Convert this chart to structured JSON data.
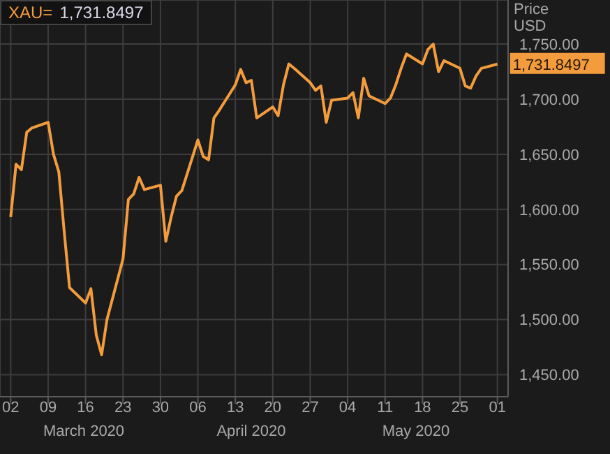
{
  "chart_data": {
    "type": "line",
    "title": "XAU=",
    "ylabel": "Price USD",
    "annotations": [
      "1,731.8497",
      "March 2020",
      "April 2020",
      "May 2020"
    ],
    "x": [
      "2020-03-02",
      "2020-03-03",
      "2020-03-04",
      "2020-03-05",
      "2020-03-06",
      "2020-03-09",
      "2020-03-10",
      "2020-03-11",
      "2020-03-12",
      "2020-03-13",
      "2020-03-16",
      "2020-03-17",
      "2020-03-18",
      "2020-03-19",
      "2020-03-20",
      "2020-03-23",
      "2020-03-24",
      "2020-03-25",
      "2020-03-26",
      "2020-03-27",
      "2020-03-30",
      "2020-03-31",
      "2020-04-01",
      "2020-04-02",
      "2020-04-03",
      "2020-04-06",
      "2020-04-07",
      "2020-04-08",
      "2020-04-09",
      "2020-04-10",
      "2020-04-13",
      "2020-04-14",
      "2020-04-15",
      "2020-04-16",
      "2020-04-17",
      "2020-04-20",
      "2020-04-21",
      "2020-04-22",
      "2020-04-23",
      "2020-04-24",
      "2020-04-27",
      "2020-04-28",
      "2020-04-29",
      "2020-04-30",
      "2020-05-01",
      "2020-05-04",
      "2020-05-05",
      "2020-05-06",
      "2020-05-07",
      "2020-05-08",
      "2020-05-11",
      "2020-05-12",
      "2020-05-13",
      "2020-05-14",
      "2020-05-15",
      "2020-05-18",
      "2020-05-19",
      "2020-05-20",
      "2020-05-21",
      "2020-05-22",
      "2020-05-25",
      "2020-05-26",
      "2020-05-27",
      "2020-05-28",
      "2020-05-29",
      "2020-06-01"
    ],
    "series": [
      {
        "color": "#f39c3d",
        "values": [
          1593,
          1641,
          1636,
          1670,
          1674,
          1679,
          1650,
          1634,
          1580,
          1529,
          1515,
          1528,
          1486,
          1468,
          1500,
          1555,
          1609,
          1614,
          1629,
          1618,
          1622,
          1571,
          1593,
          1612,
          1617,
          1663,
          1648,
          1645,
          1683,
          1690,
          1713,
          1727,
          1715,
          1717,
          1683,
          1693,
          1685,
          1713,
          1732,
          1728,
          1715,
          1708,
          1712,
          1679,
          1699,
          1701,
          1706,
          1683,
          1719,
          1703,
          1696,
          1701,
          1713,
          1728,
          1741,
          1732,
          1745,
          1750,
          1725,
          1735,
          1728,
          1712,
          1710,
          1721,
          1728,
          1731.8497
        ],
        "value_labels": [
          null,
          null,
          null,
          null,
          null,
          null,
          null,
          null,
          null,
          null,
          null,
          null,
          null,
          null,
          null,
          null,
          null,
          null,
          null,
          null,
          null,
          null,
          null,
          null,
          null,
          null,
          null,
          null,
          null,
          null,
          null,
          null,
          null,
          null,
          null,
          null,
          null,
          null,
          null,
          null,
          null,
          null,
          null,
          null,
          null,
          null,
          null,
          null,
          null,
          null,
          null,
          null,
          null,
          null,
          null,
          null,
          null,
          null,
          null,
          null,
          null,
          null,
          null,
          null,
          null,
          "1,731.8497"
        ]
      }
    ],
    "xlim": [
      "2020-02-29",
      "2020-06-03"
    ],
    "xticks": [
      {
        "value": "2020-03-02",
        "label": "02"
      },
      {
        "value": "2020-03-09",
        "label": "09"
      },
      {
        "value": "2020-03-16",
        "label": "16"
      },
      {
        "value": "2020-03-23",
        "label": "23"
      },
      {
        "value": "2020-03-30",
        "label": "30"
      },
      {
        "value": "2020-04-06",
        "label": "06"
      },
      {
        "value": "2020-04-13",
        "label": "13"
      },
      {
        "value": "2020-04-20",
        "label": "20"
      },
      {
        "value": "2020-04-27",
        "label": "27"
      },
      {
        "value": "2020-05-04",
        "label": "04"
      },
      {
        "value": "2020-05-11",
        "label": "11"
      },
      {
        "value": "2020-05-18",
        "label": "18"
      },
      {
        "value": "2020-05-25",
        "label": "25"
      },
      {
        "value": "2020-06-01",
        "label": "01"
      }
    ],
    "ylim": [
      1430,
      1790
    ],
    "yticks": [
      {
        "value": 1450,
        "label": "1,450.00"
      },
      {
        "value": 1500,
        "label": "1,500.00"
      },
      {
        "value": 1550,
        "label": "1,550.00"
      },
      {
        "value": 1600,
        "label": "1,600.00"
      },
      {
        "value": 1650,
        "label": "1,650.00"
      },
      {
        "value": 1700,
        "label": "1,700.00"
      },
      {
        "value": 1750,
        "label": "1,750.00"
      }
    ],
    "grid": true,
    "marker": "none",
    "line_style": "solid"
  }
}
